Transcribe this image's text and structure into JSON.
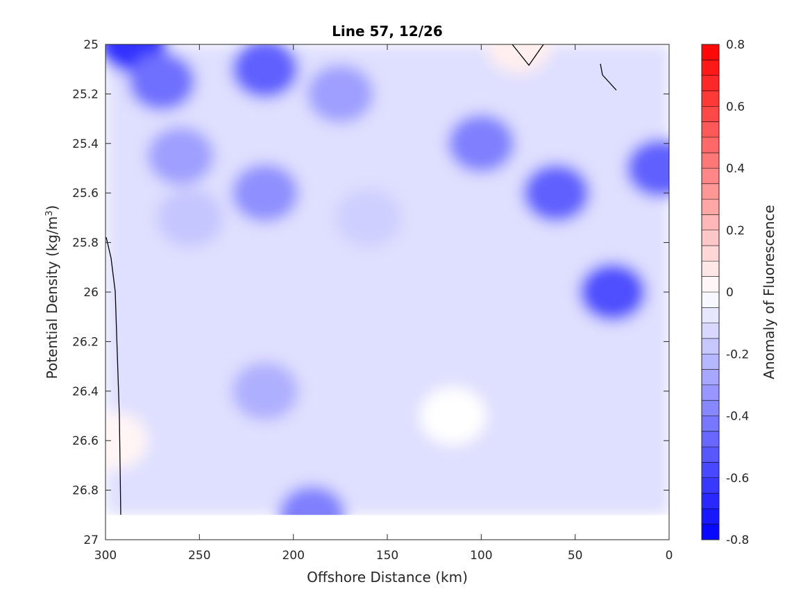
{
  "chart_data": {
    "type": "heatmap",
    "subtype": "filled-contour",
    "title": "Line 57, 12/26",
    "xlabel": "Offshore Distance (km)",
    "ylabel": {
      "main": "Potential Density (kg/m",
      "superscript": "3",
      "close": ")"
    },
    "colorbar_label": "Anomaly of Fluorescence",
    "xlim": [
      300,
      0
    ],
    "ylim": [
      25,
      27
    ],
    "x_reversed": true,
    "y_reversed": true,
    "x_ticks": [
      300,
      250,
      200,
      150,
      100,
      50,
      0
    ],
    "x_tick_labels": [
      "300",
      "250",
      "200",
      "150",
      "100",
      "50",
      "0"
    ],
    "y_ticks": [
      25,
      25.2,
      25.4,
      25.6,
      25.8,
      26,
      26.2,
      26.4,
      26.6,
      26.8,
      27
    ],
    "y_tick_labels": [
      "25",
      "25.2",
      "25.4",
      "25.6",
      "25.8",
      "26",
      "26.2",
      "26.4",
      "26.6",
      "26.8",
      "27"
    ],
    "clim": [
      -0.8,
      0.8
    ],
    "contour_step": 0.05,
    "colorbar_ticks": [
      0.8,
      0.6,
      0.4,
      0.2,
      0,
      -0.2,
      -0.4,
      -0.6,
      -0.8
    ],
    "colorbar_tick_labels": [
      "0.8",
      "0.6",
      "0.4",
      "0.2",
      "0",
      "-0.2",
      "-0.4",
      "-0.6",
      "-0.8"
    ],
    "colormap": {
      "negative": "#0000ff",
      "zero": "#ffffff",
      "positive": "#ff0000"
    },
    "data_extent": {
      "x_min": 0,
      "x_max": 300,
      "sigma_max": 26.9
    },
    "grid": false,
    "zero_contour": "black line",
    "regions": [
      {
        "x": 285,
        "y": 25.0,
        "value": -0.65
      },
      {
        "x": 270,
        "y": 25.15,
        "value": -0.45
      },
      {
        "x": 260,
        "y": 25.45,
        "value": -0.3
      },
      {
        "x": 255,
        "y": 25.7,
        "value": -0.18
      },
      {
        "x": 240,
        "y": 26.2,
        "value": -0.1
      },
      {
        "x": 215,
        "y": 25.1,
        "value": -0.5
      },
      {
        "x": 215,
        "y": 25.6,
        "value": -0.35
      },
      {
        "x": 215,
        "y": 26.4,
        "value": -0.25
      },
      {
        "x": 190,
        "y": 26.9,
        "value": -0.4
      },
      {
        "x": 175,
        "y": 25.2,
        "value": -0.3
      },
      {
        "x": 160,
        "y": 25.7,
        "value": -0.15
      },
      {
        "x": 115,
        "y": 26.5,
        "value": 0.0
      },
      {
        "x": 100,
        "y": 25.4,
        "value": -0.4
      },
      {
        "x": 60,
        "y": 25.6,
        "value": -0.5
      },
      {
        "x": 30,
        "y": 26.0,
        "value": -0.55
      },
      {
        "x": 5,
        "y": 25.5,
        "value": -0.5
      },
      {
        "x": 80,
        "y": 25.0,
        "value": 0.05
      },
      {
        "x": 295,
        "y": 26.6,
        "value": 0.03
      }
    ]
  }
}
